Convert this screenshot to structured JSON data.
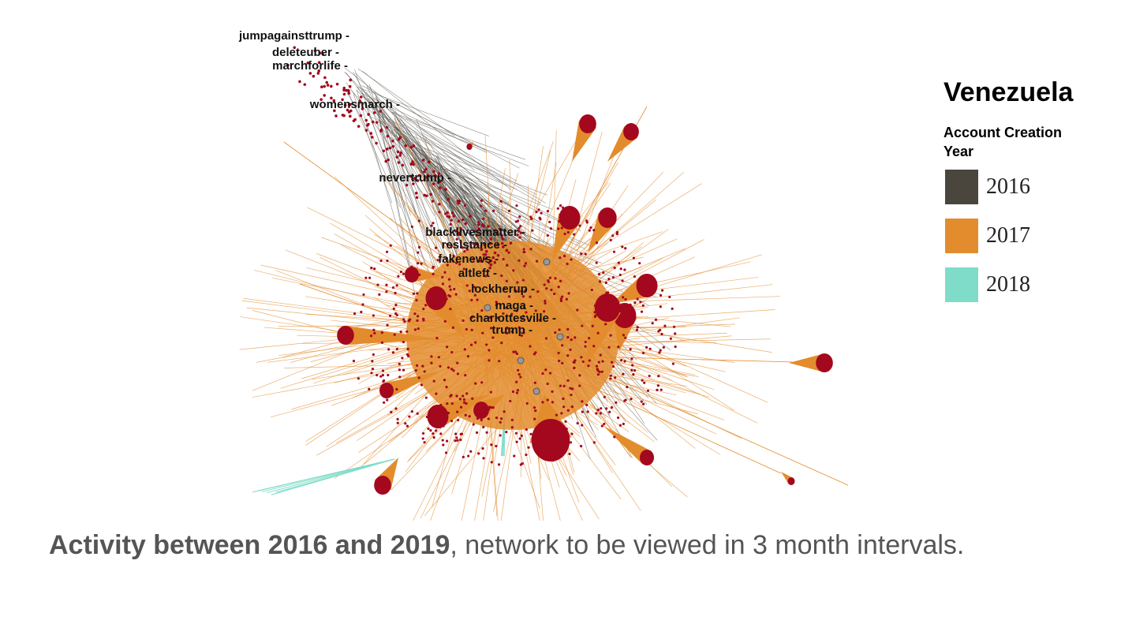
{
  "labels": [
    "jumpagainsttrump -",
    "deleteuber -",
    "marchforlife -",
    "womensmarch -",
    "nevertrump -",
    "blacklivesmatter -",
    "resistance -",
    "fakenews -",
    "altleft -",
    "lockherup -",
    "maga -",
    "charlottesville -",
    "trump -"
  ],
  "legend": {
    "title": "Venezuela",
    "subtitle": "Account Creation Year",
    "items": [
      {
        "label": "2016",
        "color": "#4a463d"
      },
      {
        "label": "2017",
        "color": "#e38c2d"
      },
      {
        "label": "2018",
        "color": "#7fdcc8"
      }
    ]
  },
  "caption": {
    "bold": "Activity between 2016 and 2019",
    "rest": ", network to be viewed in 3 month intervals."
  }
}
